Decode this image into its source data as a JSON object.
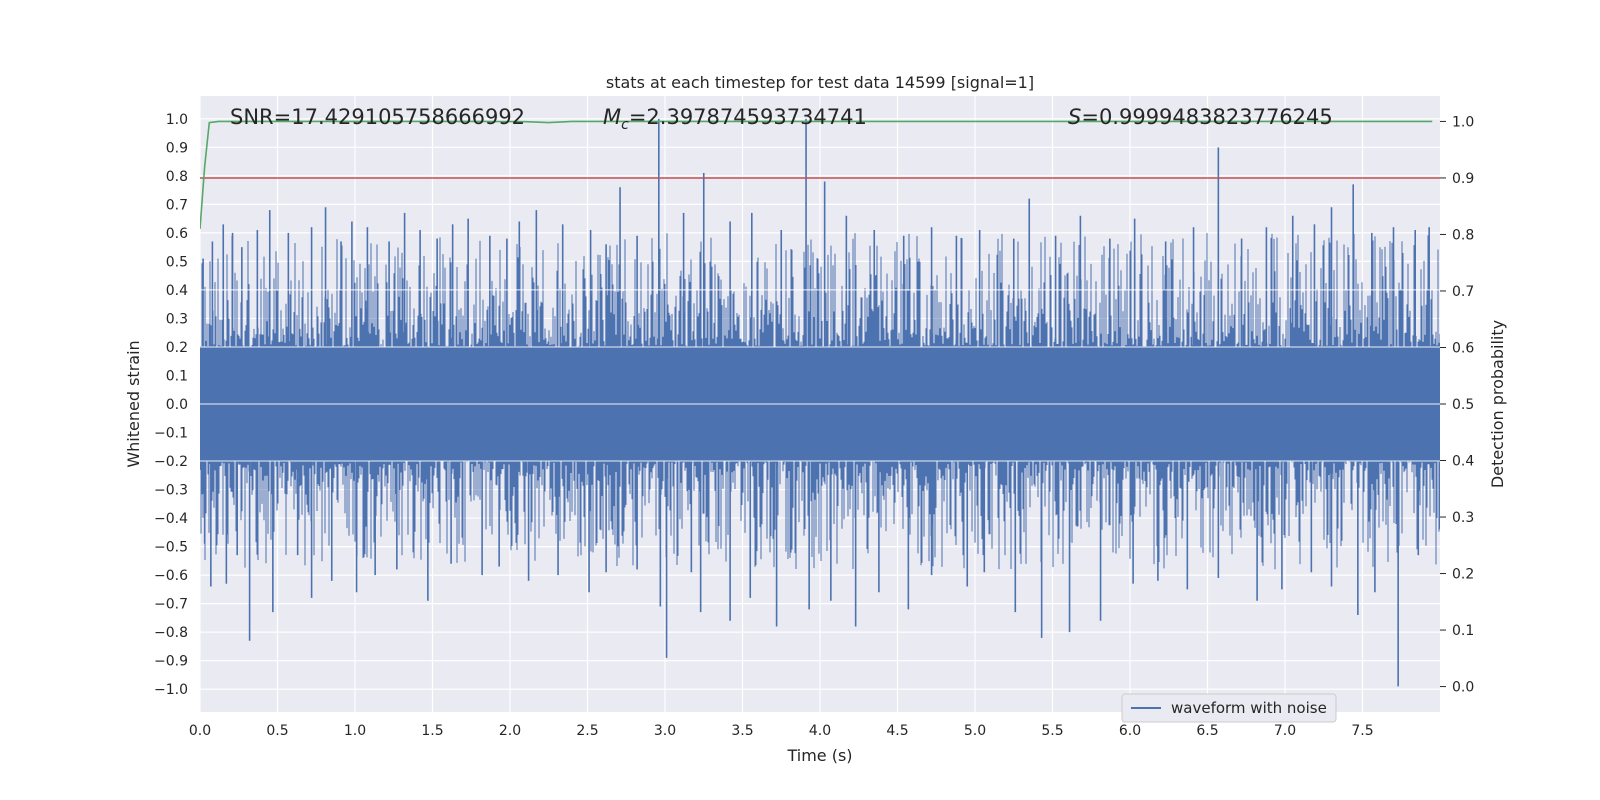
{
  "chart_data": {
    "type": "line",
    "title": "stats at each timestep for test data 14599 [signal=1]",
    "xlabel": "Time (s)",
    "ylabel": "Whitened strain",
    "y2label": "Detection probability",
    "xlim": [
      0.0,
      8.0
    ],
    "ylim": [
      -1.08,
      1.08
    ],
    "y2lim": [
      -0.045,
      1.045
    ],
    "xticks": [
      0.0,
      0.5,
      1.0,
      1.5,
      2.0,
      2.5,
      3.0,
      3.5,
      4.0,
      4.5,
      5.0,
      5.5,
      6.0,
      6.5,
      7.0,
      7.5
    ],
    "xtick_labels": [
      "0.0",
      "0.5",
      "1.0",
      "1.5",
      "2.0",
      "2.5",
      "3.0",
      "3.5",
      "4.0",
      "4.5",
      "5.0",
      "5.5",
      "6.0",
      "6.5",
      "7.0",
      "7.5"
    ],
    "yticks": [
      -1.0,
      -0.9,
      -0.8,
      -0.7,
      -0.6,
      -0.5,
      -0.4,
      -0.3,
      -0.2,
      -0.1,
      0.0,
      0.1,
      0.2,
      0.3,
      0.4,
      0.5,
      0.6,
      0.7,
      0.8,
      0.9,
      1.0
    ],
    "ytick_labels": [
      "−1.0",
      "−0.9",
      "−0.8",
      "−0.7",
      "−0.6",
      "−0.5",
      "−0.4",
      "−0.3",
      "−0.2",
      "−0.1",
      "0.0",
      "0.1",
      "0.2",
      "0.3",
      "0.4",
      "0.5",
      "0.6",
      "0.7",
      "0.8",
      "0.9",
      "1.0"
    ],
    "y2ticks": [
      0.0,
      0.1,
      0.2,
      0.3,
      0.4,
      0.5,
      0.6,
      0.7,
      0.8,
      0.9,
      1.0
    ],
    "y2tick_labels": [
      "0.0",
      "0.1",
      "0.2",
      "0.3",
      "0.4",
      "0.5",
      "0.6",
      "0.7",
      "0.8",
      "0.9",
      "1.0"
    ],
    "grid": true,
    "annotations": {
      "snr": "SNR=17.429105758666992",
      "mc_prefix": "M",
      "mc_sub": "c",
      "mc_value": "=2.397874593734741",
      "s_prefix": "S",
      "s_value": "=0.9999483823776245"
    },
    "legend": {
      "location": "lower right",
      "entries": [
        {
          "label": "waveform with noise",
          "color": "#4c72b0"
        }
      ]
    },
    "series": [
      {
        "name": "waveform with noise",
        "axis": "left",
        "color": "#4c72b0",
        "kind": "noise",
        "duration": 8.0,
        "core_amplitude": 0.2,
        "spikes_up": [
          [
            0.02,
            0.51
          ],
          [
            0.08,
            0.57
          ],
          [
            0.15,
            0.63
          ],
          [
            0.21,
            0.6
          ],
          [
            0.27,
            0.55
          ],
          [
            0.37,
            0.61
          ],
          [
            0.45,
            0.68
          ],
          [
            0.57,
            0.6
          ],
          [
            0.72,
            0.62
          ],
          [
            0.81,
            0.69
          ],
          [
            0.91,
            0.57
          ],
          [
            0.98,
            0.64
          ],
          [
            1.08,
            0.62
          ],
          [
            1.22,
            0.57
          ],
          [
            1.32,
            0.67
          ],
          [
            1.42,
            0.61
          ],
          [
            1.53,
            0.58
          ],
          [
            1.63,
            0.63
          ],
          [
            1.73,
            0.65
          ],
          [
            1.87,
            0.59
          ],
          [
            1.98,
            0.58
          ],
          [
            2.06,
            0.64
          ],
          [
            2.17,
            0.68
          ],
          [
            2.34,
            0.63
          ],
          [
            2.52,
            0.61
          ],
          [
            2.62,
            0.56
          ],
          [
            2.71,
            0.76
          ],
          [
            2.82,
            0.59
          ],
          [
            2.96,
            1.0
          ],
          [
            3.12,
            0.67
          ],
          [
            3.25,
            0.81
          ],
          [
            3.42,
            0.64
          ],
          [
            3.56,
            0.67
          ],
          [
            3.75,
            0.61
          ],
          [
            3.91,
            1.0
          ],
          [
            4.03,
            0.78
          ],
          [
            4.17,
            0.66
          ],
          [
            4.35,
            0.61
          ],
          [
            4.54,
            0.59
          ],
          [
            4.72,
            0.62
          ],
          [
            4.88,
            0.59
          ],
          [
            5.03,
            0.61
          ],
          [
            5.25,
            0.58
          ],
          [
            5.35,
            0.72
          ],
          [
            5.52,
            0.59
          ],
          [
            5.68,
            0.66
          ],
          [
            5.87,
            0.58
          ],
          [
            6.03,
            0.65
          ],
          [
            6.23,
            0.57
          ],
          [
            6.41,
            0.62
          ],
          [
            6.57,
            0.9
          ],
          [
            6.72,
            0.58
          ],
          [
            6.88,
            0.62
          ],
          [
            7.05,
            0.66
          ],
          [
            7.19,
            0.63
          ],
          [
            7.3,
            0.69
          ],
          [
            7.44,
            0.77
          ],
          [
            7.56,
            0.6
          ],
          [
            7.7,
            0.62
          ],
          [
            7.84,
            0.61
          ],
          [
            7.93,
            0.62
          ]
        ],
        "spikes_down": [
          [
            0.03,
            -0.49
          ],
          [
            0.07,
            -0.64
          ],
          [
            0.17,
            -0.63
          ],
          [
            0.24,
            -0.53
          ],
          [
            0.32,
            -0.83
          ],
          [
            0.47,
            -0.73
          ],
          [
            0.63,
            -0.53
          ],
          [
            0.72,
            -0.68
          ],
          [
            0.85,
            -0.62
          ],
          [
            1.01,
            -0.66
          ],
          [
            1.13,
            -0.6
          ],
          [
            1.27,
            -0.58
          ],
          [
            1.47,
            -0.69
          ],
          [
            1.62,
            -0.56
          ],
          [
            1.82,
            -0.6
          ],
          [
            1.93,
            -0.57
          ],
          [
            2.12,
            -0.62
          ],
          [
            2.31,
            -0.6
          ],
          [
            2.51,
            -0.66
          ],
          [
            2.62,
            -0.59
          ],
          [
            2.82,
            -0.58
          ],
          [
            2.97,
            -0.71
          ],
          [
            3.01,
            -0.89
          ],
          [
            3.17,
            -0.59
          ],
          [
            3.23,
            -0.73
          ],
          [
            3.42,
            -0.76
          ],
          [
            3.55,
            -0.68
          ],
          [
            3.72,
            -0.78
          ],
          [
            3.93,
            -0.72
          ],
          [
            4.07,
            -0.69
          ],
          [
            4.23,
            -0.78
          ],
          [
            4.38,
            -0.66
          ],
          [
            4.57,
            -0.72
          ],
          [
            4.72,
            -0.6
          ],
          [
            4.95,
            -0.64
          ],
          [
            5.06,
            -0.59
          ],
          [
            5.26,
            -0.73
          ],
          [
            5.43,
            -0.82
          ],
          [
            5.61,
            -0.8
          ],
          [
            5.81,
            -0.76
          ],
          [
            6.02,
            -0.63
          ],
          [
            6.18,
            -0.62
          ],
          [
            6.37,
            -0.65
          ],
          [
            6.57,
            -0.61
          ],
          [
            6.82,
            -0.69
          ],
          [
            6.98,
            -0.65
          ],
          [
            7.17,
            -0.59
          ],
          [
            7.3,
            -0.64
          ],
          [
            7.47,
            -0.74
          ],
          [
            7.58,
            -0.66
          ],
          [
            7.73,
            -0.99
          ],
          [
            7.86,
            -0.53
          ]
        ]
      },
      {
        "name": "detection probability",
        "axis": "right",
        "color": "#55a868",
        "x": [
          0.0,
          0.03,
          0.06,
          0.12,
          0.2,
          0.4,
          1.0,
          1.8,
          2.1,
          2.25,
          2.4,
          3.0,
          4.0,
          5.0,
          6.0,
          7.0,
          7.95
        ],
        "values": [
          0.81,
          0.92,
          0.998,
          1.0,
          1.0,
          1.0,
          1.0,
          1.0,
          0.9995,
          0.998,
          1.0,
          1.0,
          1.0,
          1.0,
          1.0,
          1.0,
          1.0
        ]
      },
      {
        "name": "threshold",
        "axis": "right",
        "color": "#c44e52",
        "x": [
          0.0,
          8.0
        ],
        "values": [
          0.9,
          0.9
        ]
      }
    ]
  }
}
